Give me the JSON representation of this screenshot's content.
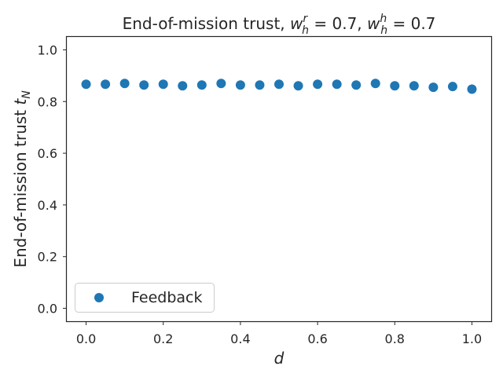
{
  "chart_data": {
    "type": "scatter",
    "title_prefix": "End-of-mission trust, ",
    "title_parts": {
      "w1_sup": "r",
      "w1_sub": "h",
      "w1_value": " = 0.7, ",
      "w2_sup": "h",
      "w2_sub": "h",
      "w2_value": " = 0.7",
      "var": "w"
    },
    "xlabel": "d",
    "ylabel_prefix": "End-of-mission trust ",
    "ylabel_var": "t",
    "ylabel_sub": "N",
    "xlim": [
      -0.05,
      1.05
    ],
    "ylim": [
      -0.05,
      1.05
    ],
    "xticks": [
      0.0,
      0.2,
      0.4,
      0.6,
      0.8,
      1.0
    ],
    "xtick_labels": [
      "0.0",
      "0.2",
      "0.4",
      "0.6",
      "0.8",
      "1.0"
    ],
    "yticks": [
      0.0,
      0.2,
      0.4,
      0.6,
      0.8,
      1.0
    ],
    "ytick_labels": [
      "0.0",
      "0.2",
      "0.4",
      "0.6",
      "0.8",
      "1.0"
    ],
    "grid": false,
    "legend_position": "lower-left",
    "series": [
      {
        "name": "Feedback",
        "color": "#1f77b4",
        "x": [
          0.0,
          0.05,
          0.1,
          0.15,
          0.2,
          0.25,
          0.3,
          0.35,
          0.4,
          0.45,
          0.5,
          0.55,
          0.6,
          0.65,
          0.7,
          0.75,
          0.8,
          0.85,
          0.9,
          0.95,
          1.0
        ],
        "y": [
          0.867,
          0.867,
          0.87,
          0.864,
          0.867,
          0.861,
          0.864,
          0.87,
          0.864,
          0.864,
          0.867,
          0.861,
          0.867,
          0.867,
          0.864,
          0.87,
          0.861,
          0.861,
          0.855,
          0.858,
          0.848
        ]
      }
    ]
  }
}
